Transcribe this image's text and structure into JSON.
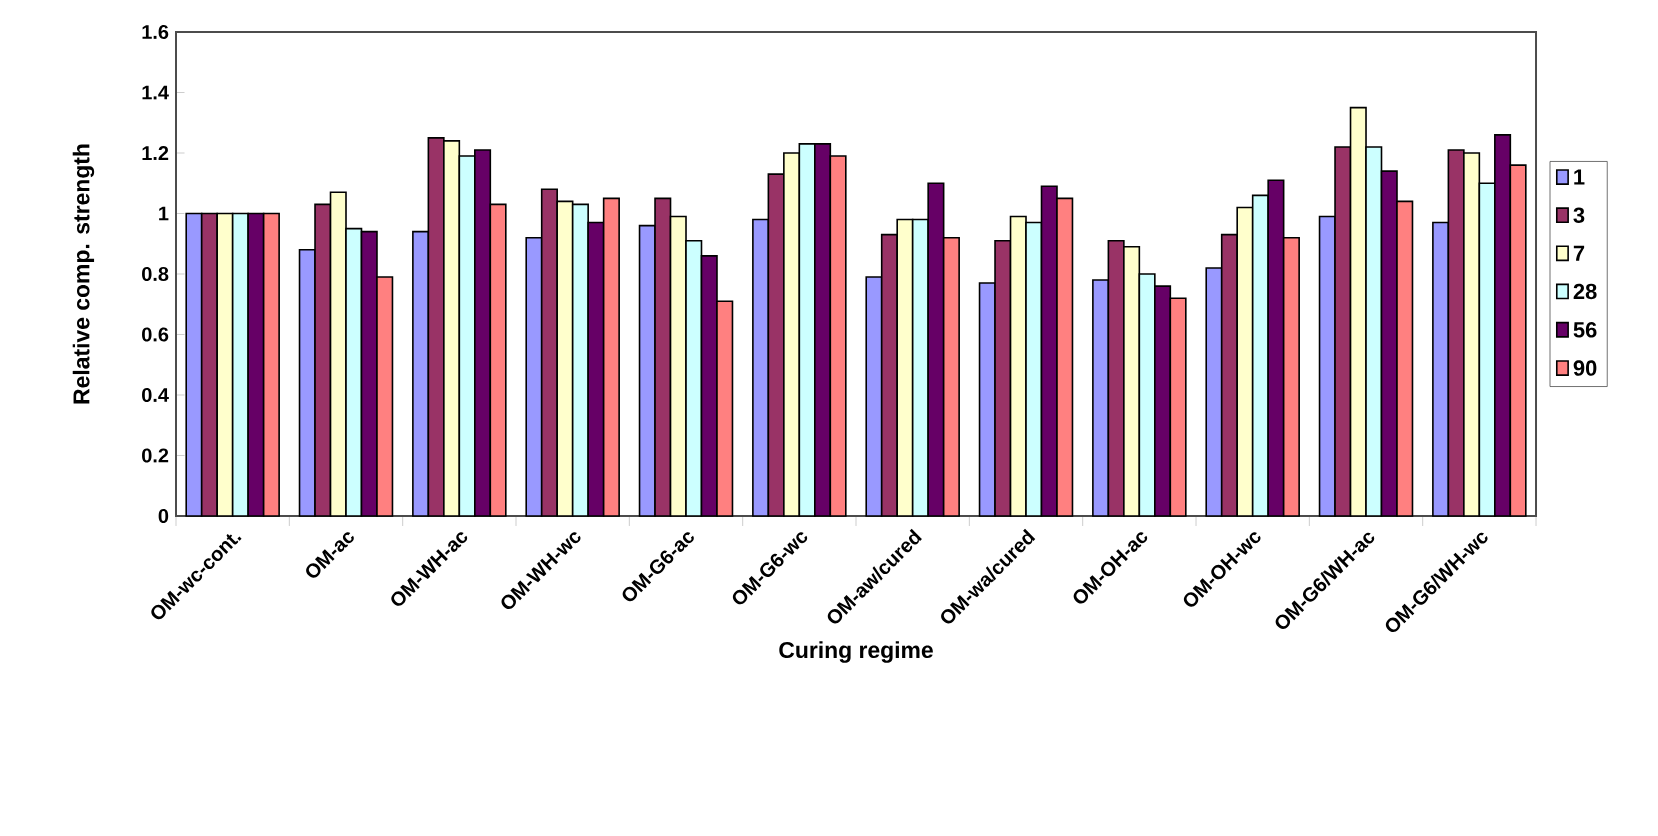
{
  "chart_data": {
    "type": "bar",
    "xlabel": "Curing regime",
    "ylabel": "Relative comp. strength",
    "categories": [
      "OM-wc-cont.",
      "OM-ac",
      "OM-WH-ac",
      "OM-WH-wc",
      "OM-G6-ac",
      "OM-G6-wc",
      "OM-aw/cured",
      "OM-wa/cured",
      "OM-OH-ac",
      "OM-OH-wc",
      "OM-G6/WH-ac",
      "OM-G6/WH-wc"
    ],
    "series": [
      {
        "name": "1",
        "color": "#9999ff",
        "values": [
          1,
          0.88,
          0.94,
          0.92,
          0.96,
          0.98,
          0.79,
          0.77,
          0.78,
          0.82,
          0.99,
          0.97
        ]
      },
      {
        "name": "3",
        "color": "#993366",
        "values": [
          1,
          1.03,
          1.25,
          1.08,
          1.05,
          1.13,
          0.93,
          0.91,
          0.91,
          0.93,
          1.22,
          1.21
        ]
      },
      {
        "name": "7",
        "color": "#ffffcc",
        "values": [
          1,
          1.07,
          1.24,
          1.04,
          0.99,
          1.2,
          0.98,
          0.99,
          0.89,
          1.02,
          1.35,
          1.2
        ]
      },
      {
        "name": "28",
        "color": "#ccffff",
        "values": [
          1,
          0.95,
          1.19,
          1.03,
          0.91,
          1.23,
          0.98,
          0.97,
          0.8,
          1.06,
          1.22,
          1.1
        ]
      },
      {
        "name": "56",
        "color": "#660066",
        "values": [
          1,
          0.94,
          1.21,
          0.97,
          0.86,
          1.23,
          1.1,
          1.09,
          0.76,
          1.11,
          1.14,
          1.26
        ]
      },
      {
        "name": "90",
        "color": "#ff8080",
        "values": [
          1,
          0.79,
          1.03,
          1.05,
          0.71,
          1.19,
          0.92,
          1.05,
          0.72,
          0.92,
          1.04,
          1.16
        ]
      }
    ],
    "ylim": [
      0,
      1.6
    ],
    "yticks": [
      0,
      0.2,
      0.4,
      0.6,
      0.8,
      1,
      1.2,
      1.4,
      1.6
    ],
    "grid": false,
    "legend": "right"
  }
}
